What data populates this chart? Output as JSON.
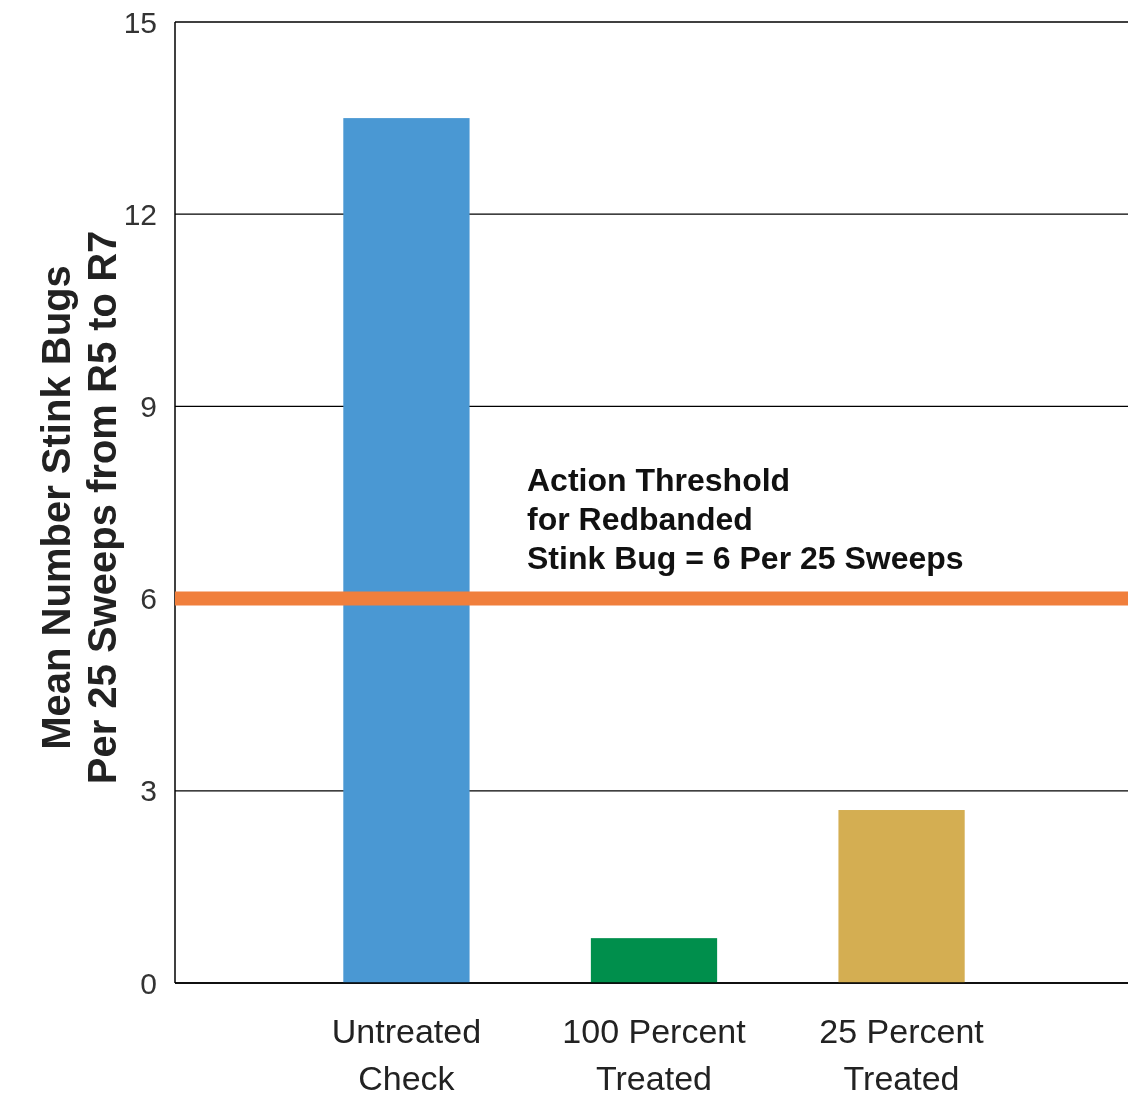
{
  "chart_data": {
    "type": "bar",
    "ylabel": "Mean Number Stink Bugs\nPer 25 Sweeps from R5 to R7",
    "categories": [
      "Untreated Check",
      "100 Percent Treated",
      "25 Percent Treated"
    ],
    "values": [
      13.5,
      0.7,
      2.7
    ],
    "colors": [
      "#4a98d3",
      "#008f4c",
      "#d4ae52"
    ],
    "ylim": [
      0,
      15
    ],
    "yticks": [
      0,
      3,
      6,
      9,
      12,
      15
    ],
    "grid": "y",
    "ref_lines": [
      {
        "axis": "y",
        "value": 6,
        "label": "Action Threshold\nfor Redbanded\nStink Bug = 6 Per 25 Sweeps",
        "color": "#f07f3c"
      }
    ]
  }
}
